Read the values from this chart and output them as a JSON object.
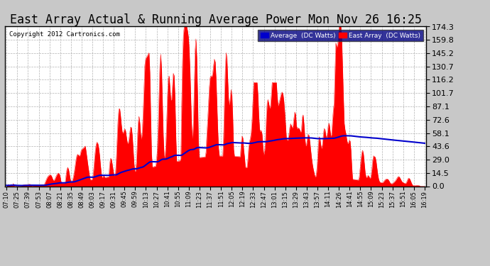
{
  "title": "East Array Actual & Running Average Power Mon Nov 26 16:25",
  "copyright": "Copyright 2012 Cartronics.com",
  "yticks": [
    0.0,
    14.5,
    29.0,
    43.6,
    58.1,
    72.6,
    87.1,
    101.7,
    116.2,
    130.7,
    145.2,
    159.8,
    174.3
  ],
  "ymax": 174.3,
  "ymin": 0.0,
  "bg_color": "#c8c8c8",
  "plot_bg_color": "#ffffff",
  "grid_color": "#aaaaaa",
  "bar_color": "#ff0000",
  "avg_color": "#0000cc",
  "title_fontsize": 12,
  "xtick_fontsize": 6,
  "ytick_fontsize": 8,
  "x_labels": [
    "07:10",
    "07:25",
    "07:39",
    "07:53",
    "08:07",
    "08:21",
    "08:35",
    "08:49",
    "09:03",
    "09:17",
    "09:31",
    "09:45",
    "09:59",
    "10:13",
    "10:27",
    "10:41",
    "10:55",
    "11:09",
    "11:23",
    "11:37",
    "11:51",
    "12:05",
    "12:19",
    "12:33",
    "12:47",
    "13:01",
    "13:15",
    "13:29",
    "13:43",
    "13:57",
    "14:11",
    "14:26",
    "14:41",
    "14:55",
    "15:09",
    "15:23",
    "15:37",
    "15:51",
    "16:05",
    "16:19"
  ]
}
